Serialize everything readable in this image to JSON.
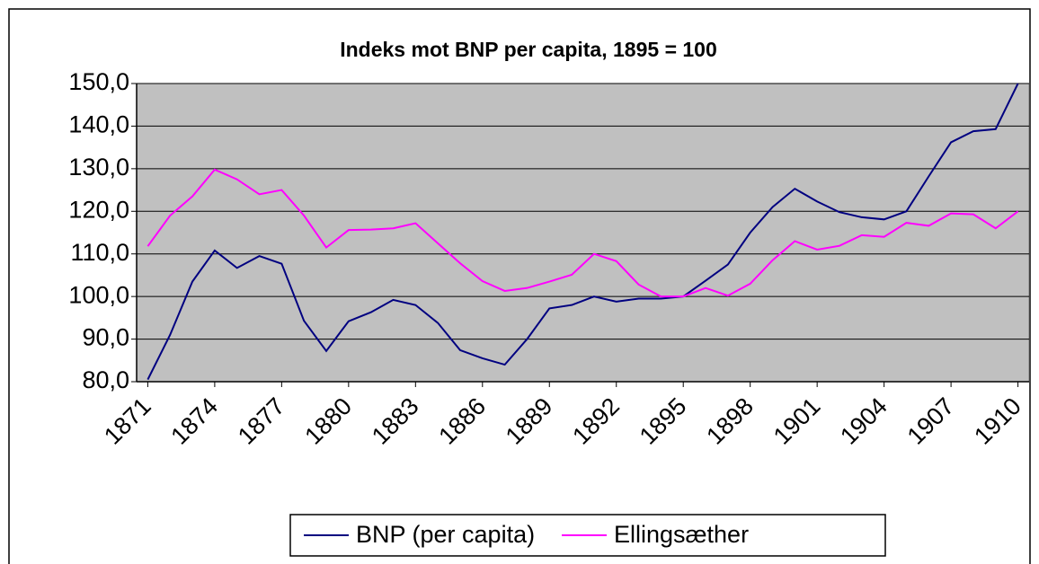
{
  "chart_data": {
    "type": "line",
    "title": "Indeks mot BNP per capita, 1895 = 100",
    "x": [
      1871,
      1872,
      1873,
      1874,
      1875,
      1876,
      1877,
      1878,
      1879,
      1880,
      1881,
      1882,
      1883,
      1884,
      1885,
      1886,
      1887,
      1888,
      1889,
      1890,
      1891,
      1892,
      1893,
      1894,
      1895,
      1896,
      1897,
      1898,
      1899,
      1900,
      1901,
      1902,
      1903,
      1904,
      1905,
      1906,
      1907,
      1908,
      1909,
      1910
    ],
    "xlim": [
      1870.5,
      1910.5
    ],
    "xticks": [
      1871,
      1874,
      1877,
      1880,
      1883,
      1886,
      1889,
      1892,
      1895,
      1898,
      1901,
      1904,
      1907,
      1910
    ],
    "ylim": [
      80,
      150
    ],
    "yticks": [
      {
        "value": 80,
        "label": "80,0"
      },
      {
        "value": 90,
        "label": "90,0"
      },
      {
        "value": 100,
        "label": "100,0"
      },
      {
        "value": 110,
        "label": "110,0"
      },
      {
        "value": 120,
        "label": "120,0"
      },
      {
        "value": 130,
        "label": "130,0"
      },
      {
        "value": 140,
        "label": "140,0"
      },
      {
        "value": 150,
        "label": "150,0"
      }
    ],
    "grid": true,
    "legend": "bottom",
    "series": [
      {
        "name": "BNP (per capita)",
        "color": "#000080",
        "values": [
          80.5,
          91,
          103.5,
          110.8,
          106.7,
          109.5,
          107.7,
          94.3,
          87.2,
          94.2,
          96.3,
          99.2,
          98,
          93.8,
          87.4,
          85.5,
          84,
          90,
          97.2,
          98,
          100,
          98.8,
          99.5,
          99.5,
          100,
          103.7,
          107.5,
          115,
          121,
          125.3,
          122.3,
          119.8,
          118.6,
          118.1,
          120,
          128.2,
          136.2,
          138.8,
          139.3,
          150
        ]
      },
      {
        "name": "Ellingsæther",
        "color": "#ff00ff",
        "values": [
          111.8,
          119,
          123.5,
          129.8,
          127.5,
          124,
          125,
          119,
          111.5,
          115.6,
          115.7,
          116,
          117.2,
          112.5,
          107.8,
          103.6,
          101.3,
          102,
          103.5,
          105.1,
          110,
          108.3,
          102.8,
          100,
          100,
          102,
          100.2,
          103,
          108.5,
          113,
          111,
          111.9,
          114.4,
          114,
          117.3,
          116.6,
          119.5,
          119.3,
          116,
          120
        ]
      }
    ]
  }
}
